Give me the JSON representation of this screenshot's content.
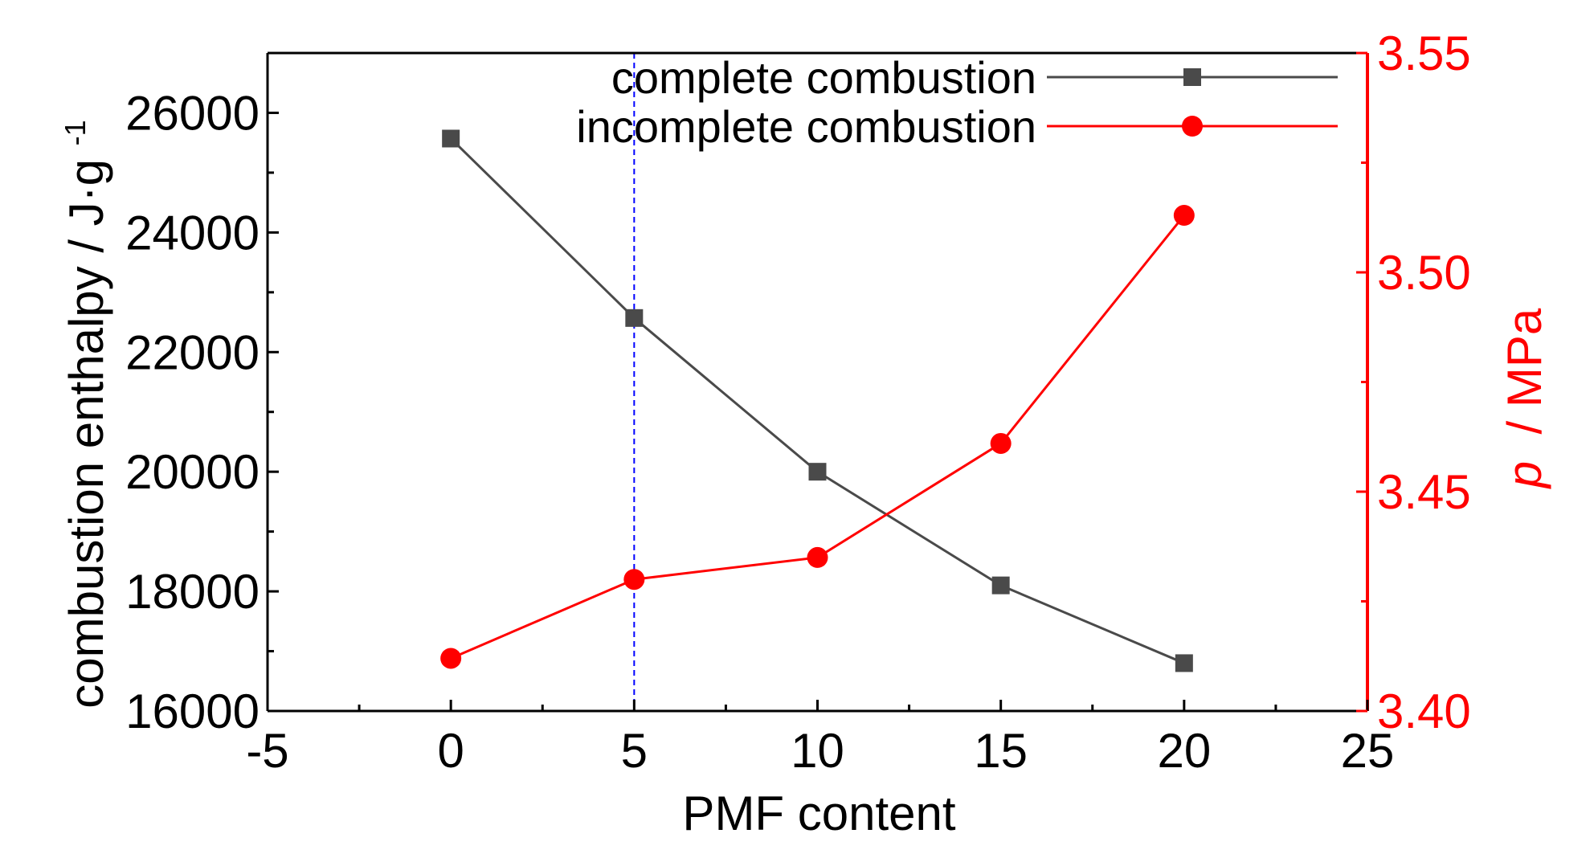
{
  "colors": {
    "left_axis": "#000000",
    "right_axis": "#ff0000",
    "series_complete": "#4a4a4a",
    "series_incomplete": "#ff0000",
    "guide_line": "#0000ff"
  },
  "chart_data": {
    "type": "line",
    "xlabel": "PMF content",
    "ylabel_left": "combustion enthalpy / J·g",
    "ylabel_left_superscript": "-1",
    "ylabel_right_italic": "p",
    "ylabel_right_rest": " / MPa",
    "xlim": [
      -5,
      25
    ],
    "x_ticks": [
      "-5",
      "0",
      "5",
      "10",
      "15",
      "20",
      "25"
    ],
    "ylim_left": [
      16000,
      27000
    ],
    "y_ticks_left": [
      "16000",
      "18000",
      "20000",
      "22000",
      "24000",
      "26000"
    ],
    "ylim_right": [
      3.4,
      3.55
    ],
    "y_ticks_right": [
      "3.40",
      "3.45",
      "3.50",
      "3.55"
    ],
    "reference_line_x": 5,
    "legend_position": "top-right",
    "series": [
      {
        "name": "complete combustion",
        "axis": "left",
        "marker": "square",
        "x": [
          0,
          5,
          10,
          15,
          20
        ],
        "y": [
          25570,
          22570,
          20000,
          18100,
          16800
        ]
      },
      {
        "name": "incomplete combustion",
        "axis": "right",
        "marker": "circle",
        "x": [
          0,
          5,
          10,
          15,
          20
        ],
        "y": [
          3.412,
          3.43,
          3.435,
          3.461,
          3.513
        ]
      }
    ]
  }
}
